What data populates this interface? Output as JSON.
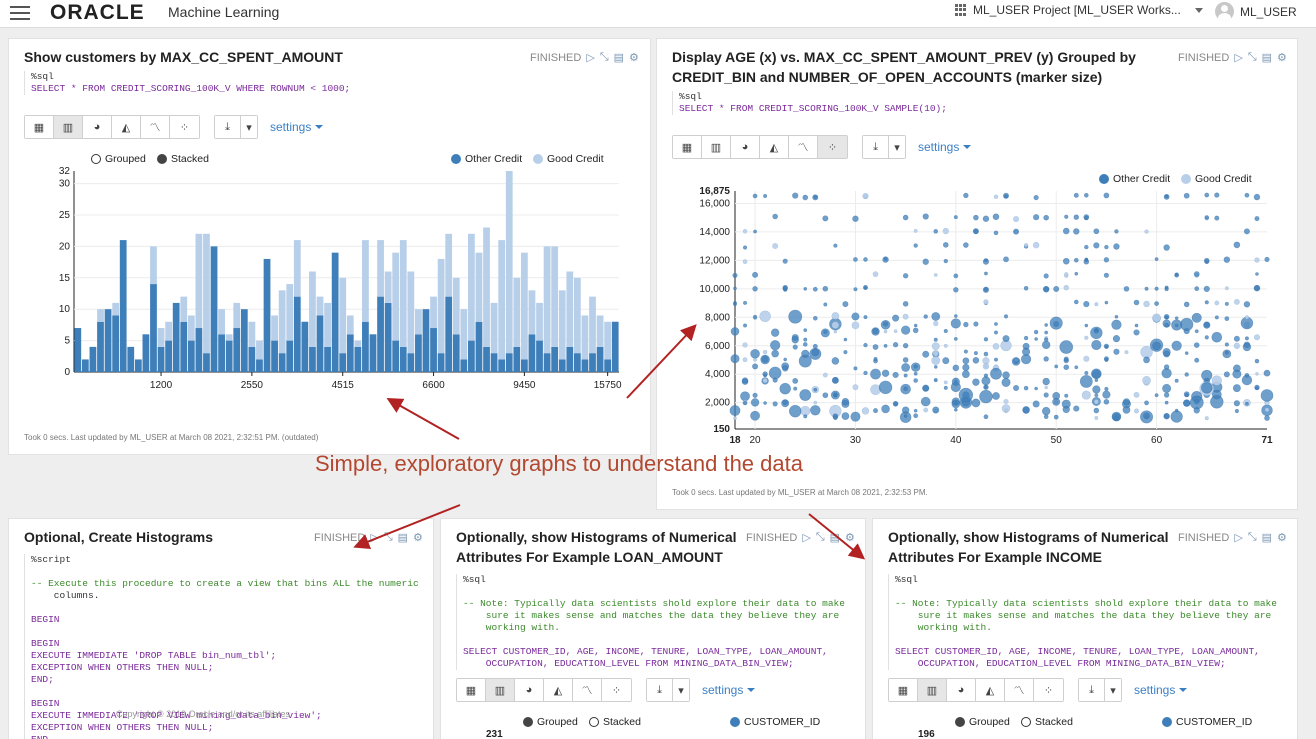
{
  "topbar": {
    "brand": "ORACLE",
    "product": "Machine Learning",
    "project": "ML_USER Project [ML_USER Works...",
    "user": "ML_USER"
  },
  "toolbar_common": {
    "settings_label": "settings"
  },
  "p1": {
    "title": "Show customers by MAX_CC_SPENT_AMOUNT",
    "status": "FINISHED",
    "code_tag": "%sql",
    "code_line": "SELECT * FROM CREDIT_SCORING_100K_V WHERE ROWNUM < 1000;",
    "legend_grouped": "Grouped",
    "legend_stacked": "Stacked",
    "legend_other": "Other Credit",
    "legend_good": "Good Credit",
    "footer": "Took 0 secs. Last updated by ML_USER at March 08 2021, 2:32:51 PM. (outdated)"
  },
  "p2": {
    "title_line1": "Display AGE (x) vs. MAX_CC_SPENT_AMOUNT_PREV (y) Grouped by",
    "title_line2": "CREDIT_BIN and NUMBER_OF_OPEN_ACCOUNTS (marker size)",
    "status": "FINISHED",
    "code_tag": "%sql",
    "code_line": "SELECT * FROM CREDIT_SCORING_100K_V SAMPLE(10);",
    "legend_other": "Other Credit",
    "legend_good": "Good Credit",
    "footer": "Took 0 secs. Last updated by ML_USER at March 08 2021, 2:32:53 PM."
  },
  "p3": {
    "title": "Optional, Create Histograms",
    "status": "FINISHED",
    "code": [
      "%script",
      "",
      "-- Execute this procedure to create a view that bins ALL the numeric",
      "    columns.",
      "",
      "BEGIN",
      "",
      "BEGIN",
      "EXECUTE IMMEDIATE 'DROP TABLE bin_num_tbl';",
      "EXCEPTION WHEN OTHERS THEN NULL;",
      "END;",
      "",
      "BEGIN",
      "EXECUTE IMMEDIATE 'DROP VIEW mining_data_bin_view';",
      "EXCEPTION WHEN OTHERS THEN NULL;",
      "END"
    ]
  },
  "p4": {
    "title_line1": "Optionally, show Histograms of Numerical",
    "title_line2": "Attributes For Example LOAN_AMOUNT",
    "status": "FINISHED",
    "code_tag": "%sql",
    "note1": "-- Note: Typically data scientists shold explore their data to make",
    "note2": "    sure it makes sense and matches the data they believe they are",
    "note3": "    working with.",
    "sel1": "SELECT CUSTOMER_ID, AGE, INCOME, TENURE, LOAN_TYPE, LOAN_AMOUNT,",
    "sel2": "    OCCUPATION, EDUCATION_LEVEL FROM MINING_DATA_BIN_VIEW;",
    "legend_grouped": "Grouped",
    "legend_stacked": "Stacked",
    "legend_series": "CUSTOMER_ID",
    "ymax": "231"
  },
  "p5": {
    "title_line1": "Optionally, show Histograms of Numerical",
    "title_line2": "Attributes For Example INCOME",
    "status": "FINISHED",
    "code_tag": "%sql",
    "note1": "-- Note: Typically data scientists shold explore their data to make",
    "note2": "    sure it makes sense and matches the data they believe they are",
    "note3": "    working with.",
    "sel1": "SELECT CUSTOMER_ID, AGE, INCOME, TENURE, LOAN_TYPE, LOAN_AMOUNT,",
    "sel2": "    OCCUPATION, EDUCATION_LEVEL FROM MINING_DATA_BIN_VIEW;",
    "legend_grouped": "Grouped",
    "legend_stacked": "Stacked",
    "legend_series": "CUSTOMER_ID",
    "ymax": "196"
  },
  "annotation": "Simple, exploratory graphs to understand the data",
  "copyright": "Copyright © 2019 Oracle and/or its affiliates.",
  "colors": {
    "other": "#3f7fb9",
    "good": "#b8cfea",
    "link": "#3a7fc4",
    "arrow": "#b22222",
    "annotation": "#b2482f"
  },
  "chart_data": [
    {
      "type": "bar",
      "stacked": true,
      "xticks": [
        "1200",
        "2550",
        "4515",
        "6600",
        "9450",
        "15750"
      ],
      "yticks": [
        0,
        5,
        10,
        15,
        20,
        25,
        30,
        32
      ],
      "ylim": [
        0,
        32
      ],
      "series": [
        {
          "name": "Other Credit",
          "values": [
            7,
            2,
            4,
            8,
            10,
            9,
            21,
            4,
            2,
            6,
            14,
            4,
            5,
            11,
            8,
            5,
            7,
            3,
            20,
            6,
            5,
            7,
            10,
            4,
            2,
            18,
            5,
            3,
            5,
            12,
            8,
            4,
            9,
            4,
            19,
            3,
            6,
            4,
            8,
            6,
            12,
            11,
            5,
            4,
            3,
            6,
            10,
            7,
            3,
            12,
            6,
            2,
            5,
            8,
            4,
            3,
            2,
            3,
            4,
            2,
            6,
            5,
            3,
            4,
            2,
            4,
            3,
            2,
            3,
            4,
            2,
            8
          ]
        },
        {
          "name": "Good Credit",
          "values": [
            0,
            0,
            0,
            2,
            0,
            2,
            0,
            0,
            0,
            0,
            6,
            3,
            3,
            0,
            4,
            4,
            15,
            19,
            0,
            4,
            1,
            4,
            0,
            4,
            3,
            0,
            4,
            10,
            9,
            9,
            0,
            12,
            3,
            7,
            0,
            12,
            3,
            1,
            13,
            0,
            9,
            5,
            14,
            17,
            13,
            4,
            0,
            5,
            15,
            10,
            9,
            8,
            17,
            11,
            19,
            8,
            19,
            29,
            11,
            17,
            7,
            6,
            17,
            16,
            11,
            12,
            12,
            7,
            9,
            5,
            6,
            0
          ]
        }
      ]
    },
    {
      "type": "scatter",
      "xlabel": "AGE",
      "ylabel": "MAX_CC_SPENT_AMOUNT_PREV",
      "xlim": [
        18,
        71
      ],
      "ylim": [
        150,
        16875
      ],
      "xticks": [
        18,
        20,
        30,
        40,
        50,
        60,
        71
      ],
      "yticks": [
        150,
        2000,
        4000,
        6000,
        8000,
        10000,
        12000,
        14000,
        16000,
        16875
      ],
      "series": [
        {
          "name": "Other Credit"
        },
        {
          "name": "Good Credit"
        }
      ]
    }
  ]
}
